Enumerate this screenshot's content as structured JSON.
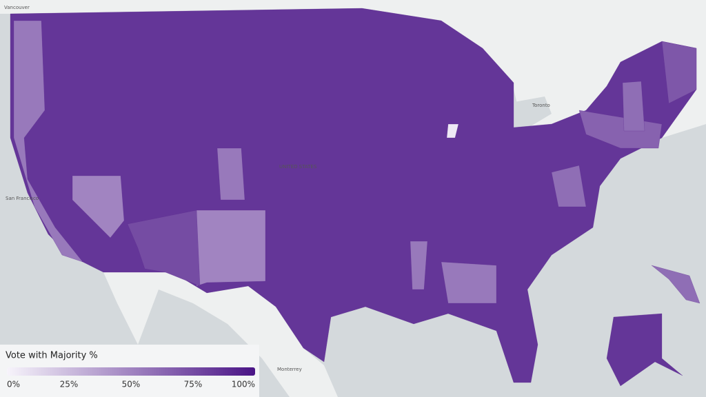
{
  "legend": {
    "title": "Vote with Majority %",
    "colorscale": [
      "#f7f4fb",
      "#4a1486"
    ],
    "range": [
      0,
      100
    ],
    "ticks": [
      {
        "value": 0,
        "label": "0%"
      },
      {
        "value": 25,
        "label": "25%"
      },
      {
        "value": 50,
        "label": "50%"
      },
      {
        "value": 75,
        "label": "75%"
      },
      {
        "value": 100,
        "label": "100%"
      }
    ]
  },
  "regions": {
    "values": [
      85,
      50,
      55,
      50,
      55,
      75,
      55,
      55,
      65,
      60,
      60,
      85,
      70,
      5,
      60
    ]
  },
  "places": [
    "Vancouver",
    "Toronto",
    "San Francisco",
    "UNITED STATES",
    "Monterrey"
  ]
}
